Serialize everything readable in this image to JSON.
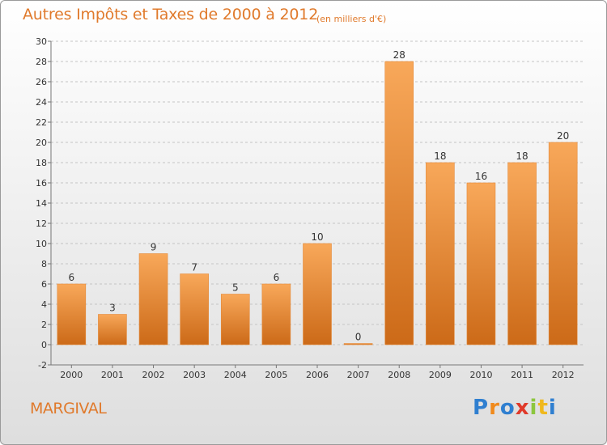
{
  "header": {
    "title": "Autres Impôts et Taxes de 2000 à 2012",
    "unit": "(en milliers d'€)"
  },
  "footer": {
    "commune": "MARGIVAL",
    "logo_letters": [
      "P",
      "r",
      "o",
      "x",
      "i",
      "t",
      "i"
    ],
    "logo_colors": [
      "#2f7fd0",
      "#f08a1c",
      "#2f7fd0",
      "#e03a2a",
      "#8cc63e",
      "#f0b81c",
      "#2f7fd0"
    ]
  },
  "colors": {
    "bar_top": "#f8a85a",
    "bar_bottom": "#cc6a18",
    "text": "#333333",
    "accent": "#e07a2c"
  },
  "chart_data": {
    "type": "bar",
    "title": "Autres Impôts et Taxes de 2000 à 2012",
    "subtitle": "(en milliers d'€)",
    "categories": [
      "2000",
      "2001",
      "2002",
      "2003",
      "2004",
      "2005",
      "2006",
      "2007",
      "2008",
      "2009",
      "2010",
      "2011",
      "2012"
    ],
    "values": [
      6,
      3,
      9,
      7,
      5,
      6,
      10,
      0,
      28,
      18,
      16,
      18,
      20
    ],
    "data_labels": [
      "6",
      "3",
      "9",
      "7",
      "5",
      "6",
      "10",
      "0",
      "28",
      "18",
      "16",
      "18",
      "20"
    ],
    "ylim": [
      -2,
      30
    ],
    "yticks": [
      -2,
      0,
      2,
      4,
      6,
      8,
      10,
      12,
      14,
      16,
      18,
      20,
      22,
      24,
      26,
      28,
      30
    ],
    "ytick_labels": [
      "-2",
      "0",
      "2",
      "4",
      "6",
      "8",
      "10",
      "12",
      "14",
      "16",
      "18",
      "20",
      "22",
      "24",
      "26",
      "28",
      "30"
    ],
    "xlabel": "",
    "ylabel": "",
    "grid": "horizontal-dashed",
    "legend": "none"
  }
}
